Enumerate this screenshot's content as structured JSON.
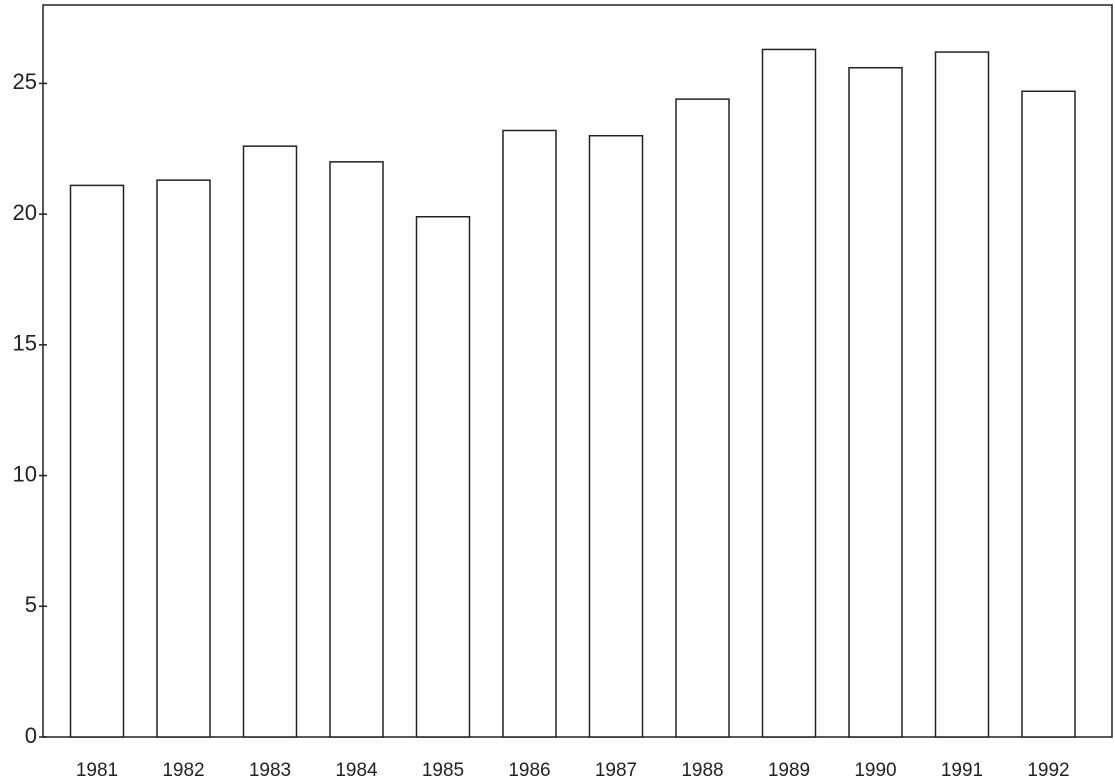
{
  "chart_data": {
    "type": "bar",
    "categories": [
      "1981",
      "1982",
      "1983",
      "1984",
      "1985",
      "1986",
      "1987",
      "1988",
      "1989",
      "1990",
      "1991",
      "1992"
    ],
    "values": [
      21.1,
      21.3,
      22.6,
      22.0,
      19.9,
      23.2,
      23.0,
      24.4,
      26.3,
      25.6,
      26.2,
      24.7
    ],
    "color": "#ffffff",
    "ylim": [
      0,
      28
    ],
    "yticks": [
      0,
      5,
      10,
      15,
      20,
      25
    ],
    "grid": false
  }
}
